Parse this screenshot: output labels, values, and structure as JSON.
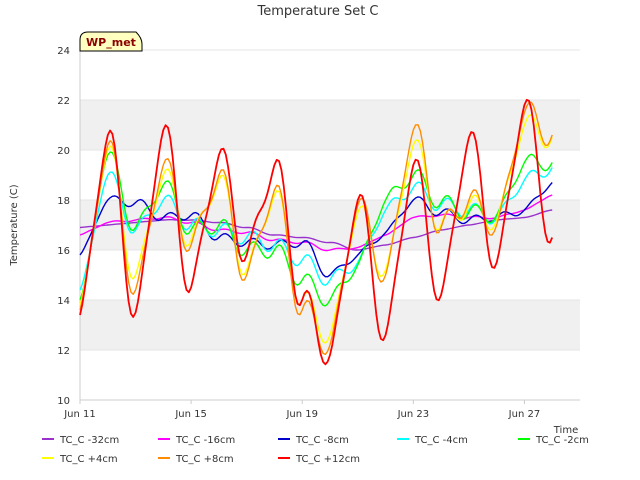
{
  "chart_data": {
    "type": "line",
    "title": "Temperature Set C",
    "xlabel": "Time",
    "ylabel": "Temperature (C)",
    "ylim": [
      10,
      24
    ],
    "xlim": [
      "2024-06-11",
      "2024-06-29"
    ],
    "yticks": [
      10,
      12,
      14,
      16,
      18,
      20,
      22,
      24
    ],
    "xticks": [
      {
        "date": "2024-06-11",
        "label": "Jun 11"
      },
      {
        "date": "2024-06-15",
        "label": "Jun 15"
      },
      {
        "date": "2024-06-19",
        "label": "Jun 19"
      },
      {
        "date": "2024-06-23",
        "label": "Jun 23"
      },
      {
        "date": "2024-06-27",
        "label": "Jun 27"
      }
    ],
    "grid": "horizontal bands",
    "legend_position": "bottom",
    "badge": "WP_met",
    "series": [
      {
        "name": "TC_C -32cm",
        "color": "#9932cc",
        "points": [
          [
            "2024-06-11",
            16.9
          ],
          [
            "2024-06-12",
            17.0
          ],
          [
            "2024-06-13",
            17.1
          ],
          [
            "2024-06-14",
            17.2
          ],
          [
            "2024-06-15",
            17.2
          ],
          [
            "2024-06-16",
            17.1
          ],
          [
            "2024-06-17",
            16.9
          ],
          [
            "2024-06-18",
            16.6
          ],
          [
            "2024-06-19",
            16.5
          ],
          [
            "2024-06-20",
            16.3
          ],
          [
            "2024-06-21",
            16.0
          ],
          [
            "2024-06-22",
            16.2
          ],
          [
            "2024-06-23",
            16.5
          ],
          [
            "2024-06-24",
            16.8
          ],
          [
            "2024-06-25",
            17.0
          ],
          [
            "2024-06-26",
            17.2
          ],
          [
            "2024-06-27",
            17.3
          ],
          [
            "2024-06-28",
            17.6
          ]
        ]
      },
      {
        "name": "TC_C -16cm",
        "color": "#ff00ff",
        "points": [
          [
            "2024-06-11",
            16.6
          ],
          [
            "2024-06-12",
            17.1
          ],
          [
            "2024-06-13",
            17.2
          ],
          [
            "2024-06-14",
            17.3
          ],
          [
            "2024-06-15",
            17.1
          ],
          [
            "2024-06-16",
            16.8
          ],
          [
            "2024-06-17",
            16.7
          ],
          [
            "2024-06-18",
            16.4
          ],
          [
            "2024-06-19",
            16.3
          ],
          [
            "2024-06-20",
            16.0
          ],
          [
            "2024-06-21",
            16.1
          ],
          [
            "2024-06-22",
            16.6
          ],
          [
            "2024-06-23",
            17.3
          ],
          [
            "2024-06-24",
            17.4
          ],
          [
            "2024-06-25",
            17.3
          ],
          [
            "2024-06-26",
            17.3
          ],
          [
            "2024-06-27",
            17.6
          ],
          [
            "2024-06-28",
            18.2
          ]
        ]
      },
      {
        "name": "TC_C -8cm",
        "color": "#0000cd",
        "points": [
          [
            "2024-06-11",
            15.8
          ],
          [
            "2024-06-12",
            18.0
          ],
          [
            "2024-06-13",
            17.9
          ],
          [
            "2024-06-14",
            17.3
          ],
          [
            "2024-06-15",
            17.4
          ],
          [
            "2024-06-16",
            16.5
          ],
          [
            "2024-06-17",
            16.3
          ],
          [
            "2024-06-18",
            16.2
          ],
          [
            "2024-06-19",
            16.3
          ],
          [
            "2024-06-20",
            15.0
          ],
          [
            "2024-06-21",
            15.8
          ],
          [
            "2024-06-22",
            16.7
          ],
          [
            "2024-06-23",
            18.0
          ],
          [
            "2024-06-24",
            17.5
          ],
          [
            "2024-06-25",
            17.2
          ],
          [
            "2024-06-26",
            17.3
          ],
          [
            "2024-06-27",
            17.6
          ],
          [
            "2024-06-28",
            18.7
          ]
        ]
      },
      {
        "name": "TC_C -4cm",
        "color": "#00ffff",
        "points": [
          [
            "2024-06-11",
            14.4
          ],
          [
            "2024-06-12",
            19.0
          ],
          [
            "2024-06-13",
            16.8
          ],
          [
            "2024-06-14",
            18.0
          ],
          [
            "2024-06-15",
            17.0
          ],
          [
            "2024-06-16",
            16.8
          ],
          [
            "2024-06-17",
            16.5
          ],
          [
            "2024-06-18",
            16.2
          ],
          [
            "2024-06-19",
            15.6
          ],
          [
            "2024-06-20",
            14.8
          ],
          [
            "2024-06-21",
            15.5
          ],
          [
            "2024-06-22",
            17.6
          ],
          [
            "2024-06-23",
            18.5
          ],
          [
            "2024-06-24",
            17.8
          ],
          [
            "2024-06-25",
            17.6
          ],
          [
            "2024-06-26",
            17.3
          ],
          [
            "2024-06-27",
            18.8
          ],
          [
            "2024-06-28",
            19.3
          ]
        ]
      },
      {
        "name": "TC_C -2cm",
        "color": "#00ff00",
        "points": [
          [
            "2024-06-11",
            14.0
          ],
          [
            "2024-06-12",
            19.8
          ],
          [
            "2024-06-13",
            16.9
          ],
          [
            "2024-06-14",
            18.6
          ],
          [
            "2024-06-15",
            16.8
          ],
          [
            "2024-06-16",
            17.0
          ],
          [
            "2024-06-17",
            16.0
          ],
          [
            "2024-06-18",
            16.0
          ],
          [
            "2024-06-19",
            14.8
          ],
          [
            "2024-06-20",
            14.0
          ],
          [
            "2024-06-21",
            15.4
          ],
          [
            "2024-06-22",
            18.0
          ],
          [
            "2024-06-23",
            19.0
          ],
          [
            "2024-06-24",
            17.9
          ],
          [
            "2024-06-25",
            17.5
          ],
          [
            "2024-06-26",
            17.4
          ],
          [
            "2024-06-27",
            19.5
          ],
          [
            "2024-06-28",
            19.5
          ]
        ]
      },
      {
        "name": "TC_C +4cm",
        "color": "#ffff00",
        "points": [
          [
            "2024-06-11",
            13.8
          ],
          [
            "2024-06-12",
            20.0
          ],
          [
            "2024-06-13",
            15.0
          ],
          [
            "2024-06-14",
            19.0
          ],
          [
            "2024-06-15",
            16.4
          ],
          [
            "2024-06-16",
            18.8
          ],
          [
            "2024-06-17",
            15.2
          ],
          [
            "2024-06-18",
            18.2
          ],
          [
            "2024-06-19",
            14.0
          ],
          [
            "2024-06-20",
            12.6
          ],
          [
            "2024-06-21",
            17.5
          ],
          [
            "2024-06-22",
            15.2
          ],
          [
            "2024-06-23",
            20.2
          ],
          [
            "2024-06-24",
            17.0
          ],
          [
            "2024-06-25",
            17.8
          ],
          [
            "2024-06-26",
            17.2
          ],
          [
            "2024-06-27",
            21.0
          ],
          [
            "2024-06-28",
            20.5
          ]
        ]
      },
      {
        "name": "TC_C +8cm",
        "color": "#ff8c00",
        "points": [
          [
            "2024-06-11",
            13.6
          ],
          [
            "2024-06-12",
            20.2
          ],
          [
            "2024-06-13",
            14.4
          ],
          [
            "2024-06-14",
            19.4
          ],
          [
            "2024-06-15",
            16.2
          ],
          [
            "2024-06-16",
            19.0
          ],
          [
            "2024-06-17",
            15.0
          ],
          [
            "2024-06-18",
            18.4
          ],
          [
            "2024-06-19",
            13.6
          ],
          [
            "2024-06-20",
            12.2
          ],
          [
            "2024-06-21",
            17.8
          ],
          [
            "2024-06-22",
            15.0
          ],
          [
            "2024-06-23",
            20.8
          ],
          [
            "2024-06-24",
            16.9
          ],
          [
            "2024-06-25",
            18.0
          ],
          [
            "2024-06-26",
            17.0
          ],
          [
            "2024-06-27",
            21.5
          ],
          [
            "2024-06-28",
            20.6
          ]
        ]
      },
      {
        "name": "TC_C +12cm",
        "color": "#ff0000",
        "points": [
          [
            "2024-06-11",
            13.4
          ],
          [
            "2024-06-12",
            20.6
          ],
          [
            "2024-06-13",
            13.5
          ],
          [
            "2024-06-14",
            20.8
          ],
          [
            "2024-06-15",
            14.5
          ],
          [
            "2024-06-16",
            19.8
          ],
          [
            "2024-06-17",
            15.8
          ],
          [
            "2024-06-18",
            19.4
          ],
          [
            "2024-06-19",
            14.0
          ],
          [
            "2024-06-20",
            11.8
          ],
          [
            "2024-06-21",
            18.0
          ],
          [
            "2024-06-22",
            12.6
          ],
          [
            "2024-06-23",
            19.4
          ],
          [
            "2024-06-24",
            14.2
          ],
          [
            "2024-06-25",
            20.5
          ],
          [
            "2024-06-26",
            15.5
          ],
          [
            "2024-06-27",
            21.8
          ],
          [
            "2024-06-28",
            16.5
          ]
        ]
      }
    ]
  }
}
